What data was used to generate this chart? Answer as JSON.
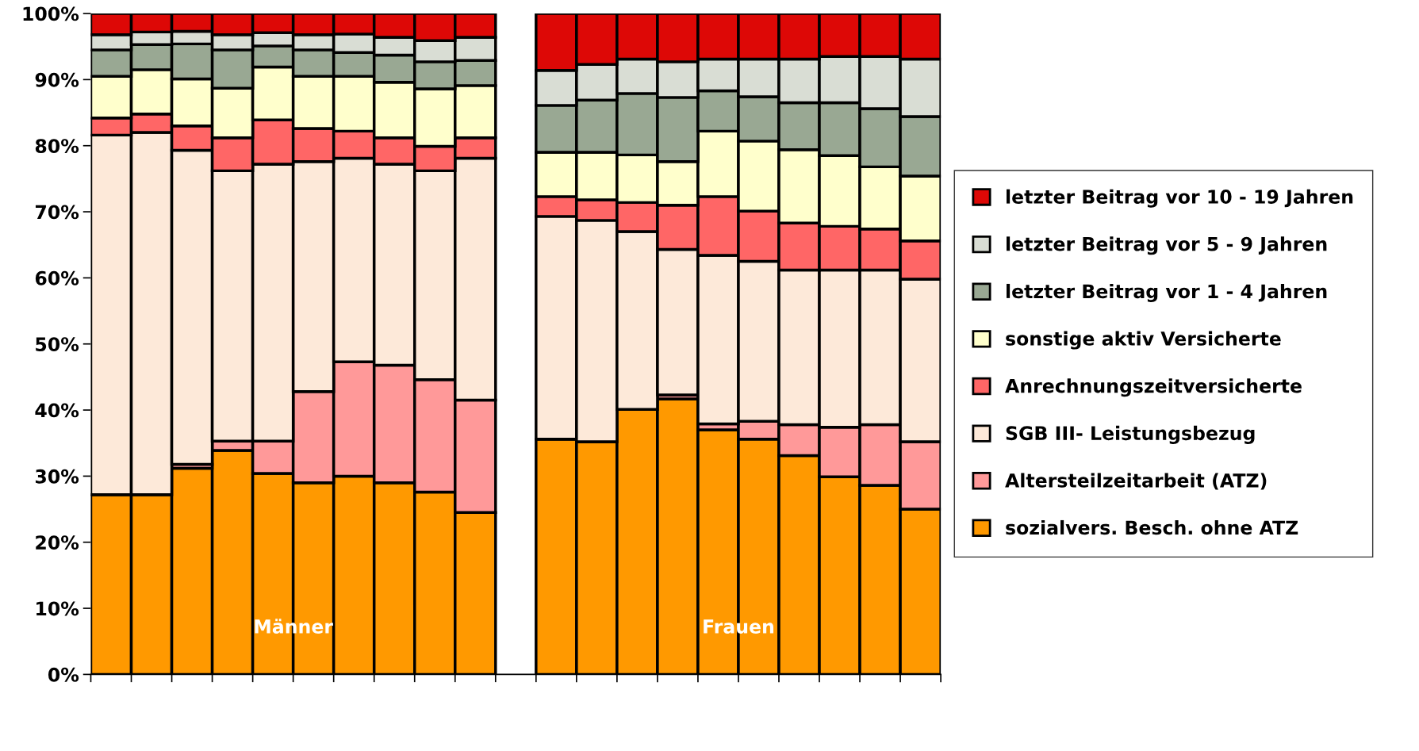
{
  "chart_data": {
    "type": "bar",
    "stacked": true,
    "categories": [
      null,
      null,
      null,
      null,
      null,
      null,
      null,
      null,
      null,
      null,
      null,
      null,
      null,
      null,
      null,
      null,
      null,
      null,
      null,
      null,
      null
    ],
    "series": [
      {
        "name": "sozialvers. Besch. ohne ATZ",
        "color": "#ff9900",
        "values": [
          27.2,
          27.2,
          31.2,
          33.9,
          30.4,
          29.0,
          30.0,
          29.0,
          27.6,
          24.5,
          null,
          35.6,
          35.2,
          40.1,
          41.7,
          37.0,
          35.6,
          33.1,
          29.9,
          28.6,
          25.0
        ]
      },
      {
        "name": "Altersteilzeitarbeit (ATZ)",
        "color": "#ff9999",
        "values": [
          0,
          0,
          0.6,
          1.4,
          4.9,
          13.8,
          17.3,
          17.8,
          17.0,
          17.0,
          null,
          0,
          0,
          0,
          0.6,
          0.9,
          2.7,
          4.7,
          7.5,
          9.2,
          10.2
        ]
      },
      {
        "name": "SGB III- Leistungsbezug",
        "color": "#fde9d9",
        "values": [
          54.4,
          54.8,
          47.5,
          40.9,
          41.9,
          34.8,
          30.8,
          30.4,
          31.6,
          36.6,
          null,
          33.7,
          33.5,
          26.9,
          22.0,
          25.5,
          24.2,
          23.4,
          23.8,
          23.4,
          24.6
        ]
      },
      {
        "name": "Anrechnungszeitversicherte",
        "color": "#ff6666",
        "values": [
          2.6,
          2.8,
          3.7,
          5.0,
          6.7,
          5.0,
          4.1,
          4.0,
          3.7,
          3.1,
          null,
          3.0,
          3.1,
          4.4,
          6.7,
          8.9,
          7.6,
          7.1,
          6.6,
          6.2,
          5.8
        ]
      },
      {
        "name": "sonstige aktiv Versicherte",
        "color": "#ffffcc",
        "values": [
          6.3,
          6.7,
          7.1,
          7.5,
          8.0,
          7.9,
          8.3,
          8.4,
          8.7,
          7.9,
          null,
          6.7,
          7.2,
          7.2,
          6.6,
          9.9,
          10.6,
          11.1,
          10.7,
          9.4,
          9.8
        ]
      },
      {
        "name": "letzter Beitrag vor 1 - 4 Jahren",
        "color": "#99a893",
        "values": [
          4.0,
          3.8,
          5.3,
          5.8,
          3.2,
          4.0,
          3.6,
          4.1,
          4.1,
          3.8,
          null,
          7.1,
          7.9,
          9.3,
          9.7,
          6.1,
          6.7,
          7.1,
          8.0,
          8.8,
          9.0
        ]
      },
      {
        "name": "letzter Beitrag vor 5 - 9 Jahren",
        "color": "#d9ddd4",
        "values": [
          2.3,
          1.9,
          1.9,
          2.3,
          2.0,
          2.3,
          2.8,
          2.7,
          3.2,
          3.5,
          null,
          5.3,
          5.4,
          5.2,
          5.4,
          4.8,
          5.7,
          6.6,
          7.0,
          7.9,
          8.7
        ]
      },
      {
        "name": "letzter Beitrag vor 10 - 19 Jahren",
        "color": "#dd0806",
        "values": [
          3.2,
          2.8,
          2.7,
          3.2,
          2.9,
          3.2,
          3.1,
          3.6,
          4.1,
          3.6,
          null,
          8.6,
          7.7,
          6.9,
          7.3,
          6.9,
          6.9,
          6.9,
          6.5,
          6.5,
          6.9
        ]
      }
    ],
    "ylim": [
      0,
      100
    ],
    "yticks": [
      {
        "value": 0,
        "label": "0%"
      },
      {
        "value": 10,
        "label": "10%"
      },
      {
        "value": 20,
        "label": "20%"
      },
      {
        "value": 30,
        "label": "30%"
      },
      {
        "value": 40,
        "label": "40%"
      },
      {
        "value": 50,
        "label": "50%"
      },
      {
        "value": 60,
        "label": "60%"
      },
      {
        "value": 70,
        "label": "70%"
      },
      {
        "value": 80,
        "label": "80%"
      },
      {
        "value": 90,
        "label": "90%"
      },
      {
        "value": 100,
        "label": "100%"
      }
    ],
    "annotations": [
      "Männer",
      "Frauen"
    ],
    "legend": "right",
    "grid": false
  }
}
